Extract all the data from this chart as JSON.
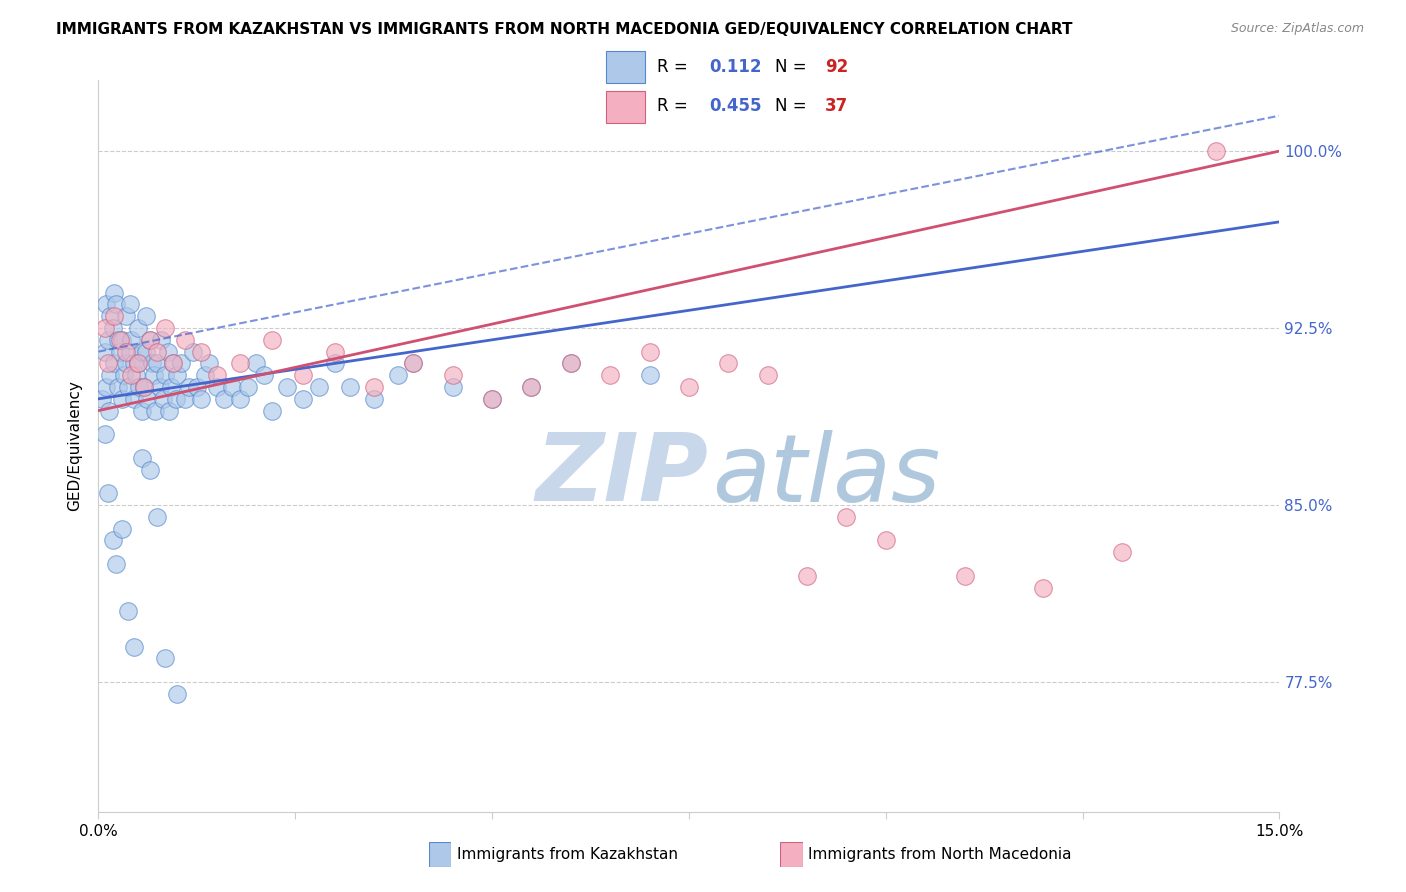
{
  "title": "IMMIGRANTS FROM KAZAKHSTAN VS IMMIGRANTS FROM NORTH MACEDONIA GED/EQUIVALENCY CORRELATION CHART",
  "source": "Source: ZipAtlas.com",
  "ylabel": "GED/Equivalency",
  "R1": "0.112",
  "N1": "92",
  "R2": "0.455",
  "N2": "37",
  "color1_face": "#adc8e8",
  "color1_edge": "#5588cc",
  "color2_face": "#f4b0c0",
  "color2_edge": "#d06080",
  "line_color1": "#4466cc",
  "line_color2": "#d05070",
  "label1": "Immigrants from Kazakhstan",
  "label2": "Immigrants from North Macedonia",
  "xlim": [
    0.0,
    15.0
  ],
  "ylim": [
    72.0,
    103.0
  ],
  "yticks": [
    77.5,
    85.0,
    92.5,
    100.0
  ],
  "ytick_labels": [
    "77.5%",
    "85.0%",
    "92.5%",
    "100.0%"
  ],
  "grid_color": "#cccccc",
  "title_fontsize": 11,
  "source_fontsize": 9,
  "tick_fontsize": 11,
  "scatter_size": 160,
  "scatter_alpha": 0.65,
  "watermark_zip_color": "#ccd8e8",
  "watermark_atlas_color": "#b8ccdd",
  "kaz_x": [
    0.05,
    0.08,
    0.1,
    0.1,
    0.12,
    0.13,
    0.15,
    0.15,
    0.18,
    0.2,
    0.2,
    0.22,
    0.25,
    0.25,
    0.28,
    0.3,
    0.3,
    0.32,
    0.35,
    0.35,
    0.38,
    0.4,
    0.4,
    0.42,
    0.45,
    0.45,
    0.48,
    0.5,
    0.5,
    0.52,
    0.55,
    0.55,
    0.58,
    0.6,
    0.6,
    0.62,
    0.65,
    0.68,
    0.7,
    0.72,
    0.75,
    0.78,
    0.8,
    0.82,
    0.85,
    0.88,
    0.9,
    0.92,
    0.95,
    0.98,
    1.0,
    1.05,
    1.1,
    1.15,
    1.2,
    1.25,
    1.3,
    1.35,
    1.4,
    1.5,
    1.6,
    1.7,
    1.8,
    1.9,
    2.0,
    2.1,
    2.2,
    2.4,
    2.6,
    2.8,
    3.0,
    3.2,
    3.5,
    3.8,
    4.0,
    4.5,
    5.0,
    5.5,
    6.0,
    7.0,
    0.08,
    0.12,
    0.18,
    0.22,
    0.3,
    0.38,
    0.45,
    0.55,
    0.65,
    0.75,
    0.85,
    1.0
  ],
  "kaz_y": [
    89.5,
    91.5,
    90.0,
    93.5,
    92.0,
    89.0,
    93.0,
    90.5,
    92.5,
    91.0,
    94.0,
    93.5,
    92.0,
    90.0,
    91.5,
    92.0,
    89.5,
    90.5,
    91.0,
    93.0,
    90.0,
    91.5,
    93.5,
    92.0,
    91.0,
    89.5,
    90.5,
    91.0,
    92.5,
    90.0,
    91.5,
    89.0,
    90.0,
    91.5,
    93.0,
    89.5,
    92.0,
    91.0,
    90.5,
    89.0,
    91.0,
    90.0,
    92.0,
    89.5,
    90.5,
    91.5,
    89.0,
    90.0,
    91.0,
    89.5,
    90.5,
    91.0,
    89.5,
    90.0,
    91.5,
    90.0,
    89.5,
    90.5,
    91.0,
    90.0,
    89.5,
    90.0,
    89.5,
    90.0,
    91.0,
    90.5,
    89.0,
    90.0,
    89.5,
    90.0,
    91.0,
    90.0,
    89.5,
    90.5,
    91.0,
    90.0,
    89.5,
    90.0,
    91.0,
    90.5,
    88.0,
    85.5,
    83.5,
    82.5,
    84.0,
    80.5,
    79.0,
    87.0,
    86.5,
    84.5,
    78.5,
    77.0
  ],
  "mac_x": [
    0.08,
    0.12,
    0.2,
    0.28,
    0.35,
    0.42,
    0.5,
    0.58,
    0.65,
    0.75,
    0.85,
    0.95,
    1.1,
    1.3,
    1.5,
    1.8,
    2.2,
    2.6,
    3.0,
    3.5,
    4.0,
    4.5,
    5.0,
    5.5,
    6.0,
    6.5,
    7.0,
    7.5,
    8.0,
    8.5,
    9.0,
    9.5,
    10.0,
    11.0,
    12.0,
    13.0,
    14.2
  ],
  "mac_y": [
    92.5,
    91.0,
    93.0,
    92.0,
    91.5,
    90.5,
    91.0,
    90.0,
    92.0,
    91.5,
    92.5,
    91.0,
    92.0,
    91.5,
    90.5,
    91.0,
    92.0,
    90.5,
    91.5,
    90.0,
    91.0,
    90.5,
    89.5,
    90.0,
    91.0,
    90.5,
    91.5,
    90.0,
    91.0,
    90.5,
    82.0,
    84.5,
    83.5,
    82.0,
    81.5,
    83.0,
    100.0
  ]
}
